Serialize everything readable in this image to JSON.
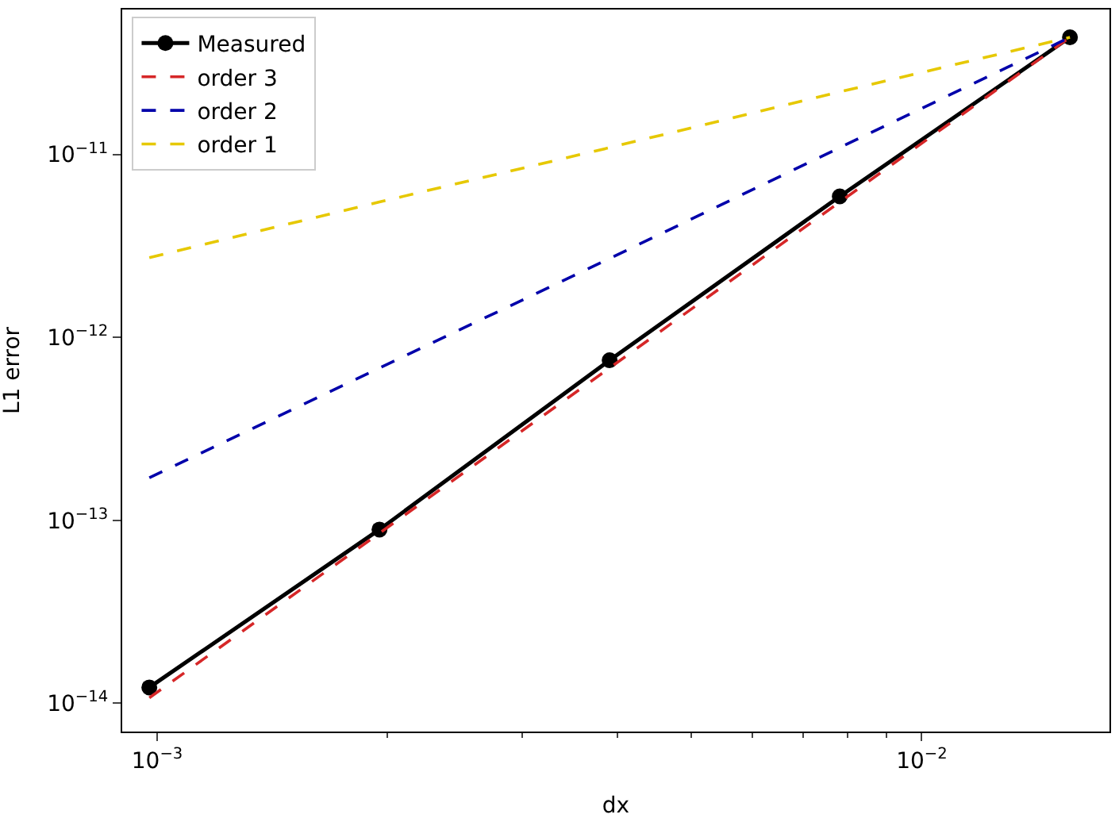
{
  "chart_data": {
    "type": "line",
    "xlabel": "dx",
    "ylabel": "L1 error",
    "log": "xy",
    "grid": false,
    "legend": "top left",
    "x": [
      0.0009765625,
      0.001953125,
      0.00390625,
      0.0078125,
      0.015625
    ],
    "xlim": [
      0.0009,
      0.0176
    ],
    "ylim": [
      7e-15,
      6.2e-11
    ],
    "xticks": [
      {
        "value": 0.001,
        "label": "10$^{−3}$"
      },
      {
        "value": 0.002,
        "label": null
      },
      {
        "value": 0.003,
        "label": null
      },
      {
        "value": 0.004,
        "label": null
      },
      {
        "value": 0.005,
        "label": null
      },
      {
        "value": 0.006,
        "label": null
      },
      {
        "value": 0.007,
        "label": null
      },
      {
        "value": 0.008,
        "label": null
      },
      {
        "value": 0.009,
        "label": null
      },
      {
        "value": 0.01,
        "label": "10$^{−2}$"
      }
    ],
    "yticks": [
      {
        "value": 1e-14,
        "label": "10$^{−14}$"
      },
      {
        "value": 1e-13,
        "label": "10$^{−13}$"
      },
      {
        "value": 1e-12,
        "label": "10$^{−12}$"
      },
      {
        "value": 1e-11,
        "label": "10$^{−11}$"
      }
    ],
    "series": [
      {
        "name": "Measured",
        "color": "#000000",
        "marker": "circle",
        "line_style": "solid",
        "values": [
          1.22e-14,
          8.9e-14,
          7.5e-13,
          5.9e-12,
          4.37e-11
        ]
      },
      {
        "name": "order 3",
        "color": "#d62728",
        "marker": "none",
        "line_style": "dashed",
        "values": [
          1.07e-14,
          8.5e-14,
          6.8e-13,
          5.5e-12,
          4.37e-11
        ]
      },
      {
        "name": "order 2",
        "color": "#0000aa",
        "marker": "none",
        "line_style": "dashed",
        "values": [
          1.71e-13,
          6.8e-13,
          2.7e-12,
          1.09e-11,
          4.37e-11
        ]
      },
      {
        "name": "order 1",
        "color": "#e6c800",
        "marker": "none",
        "line_style": "dashed",
        "values": [
          2.73e-12,
          5.5e-12,
          1.09e-11,
          2.2e-11,
          4.37e-11
        ]
      }
    ]
  }
}
